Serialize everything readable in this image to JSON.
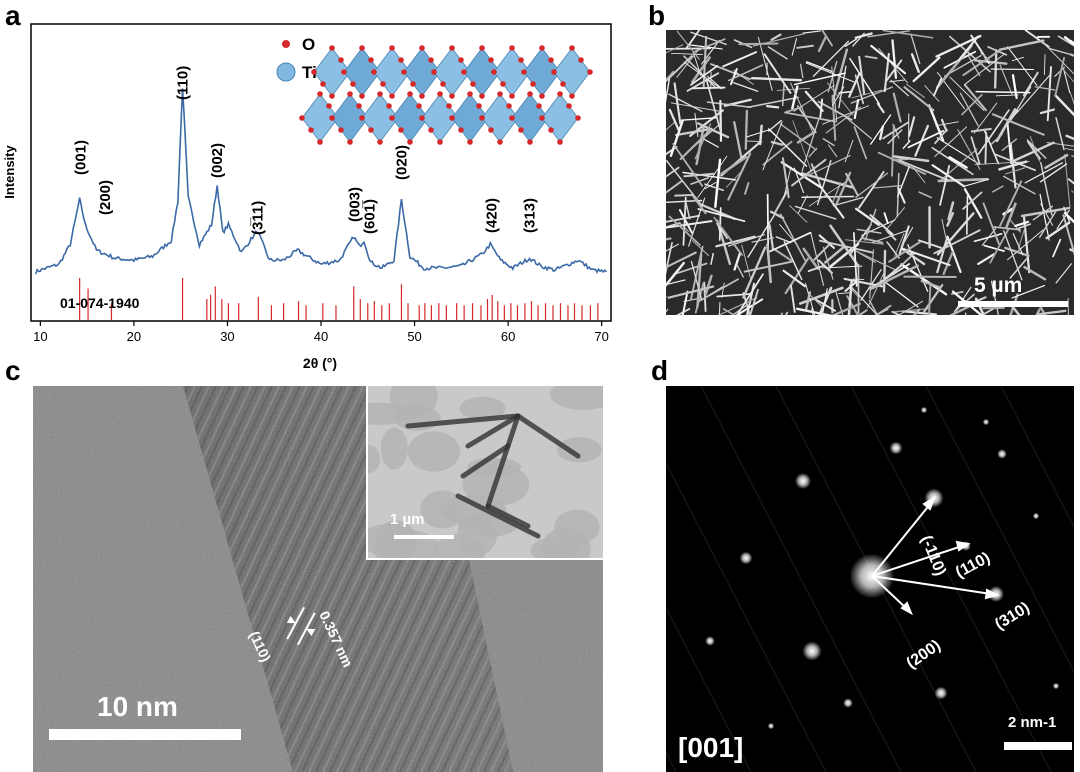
{
  "panels": {
    "a": "a",
    "b": "b",
    "c": "c",
    "d": "d"
  },
  "panel_a": {
    "ylabel": "Intensity",
    "xlabel": "2θ (°)",
    "reference_label": "01-074-1940",
    "legend": [
      {
        "label": "O",
        "color": "#d62828"
      },
      {
        "label": "Ti",
        "color": "#7fb8e0"
      }
    ],
    "colors": {
      "pattern": "#3b6aa6",
      "reference": "#d62828"
    }
  },
  "chart_data": {
    "type": "line",
    "xlabel": "2θ (°)",
    "ylabel": "Intensity",
    "xlim": [
      9,
      71
    ],
    "xticks": [
      10,
      20,
      30,
      40,
      50,
      60,
      70
    ],
    "x": [
      9.5,
      10,
      12,
      13.2,
      14.2,
      14.8,
      16,
      18,
      20,
      22,
      24,
      24.7,
      25.2,
      25.8,
      27,
      28.3,
      28.9,
      29.5,
      30.1,
      31.5,
      33.2,
      34.5,
      36,
      37.5,
      38.5,
      40,
      42,
      43.5,
      44.1,
      44.6,
      45.3,
      46.5,
      47.8,
      48.6,
      49.5,
      51,
      53,
      55,
      57.2,
      58.1,
      59.2,
      60.5,
      62.3,
      63.5,
      65,
      67.5,
      69,
      70.5
    ],
    "y": [
      0.06,
      0.07,
      0.1,
      0.2,
      0.43,
      0.3,
      0.17,
      0.13,
      0.12,
      0.14,
      0.22,
      0.42,
      1.0,
      0.44,
      0.2,
      0.3,
      0.5,
      0.26,
      0.3,
      0.16,
      0.27,
      0.12,
      0.12,
      0.17,
      0.14,
      0.1,
      0.12,
      0.24,
      0.19,
      0.22,
      0.11,
      0.08,
      0.12,
      0.43,
      0.14,
      0.08,
      0.08,
      0.09,
      0.15,
      0.2,
      0.12,
      0.08,
      0.13,
      0.09,
      0.07,
      0.12,
      0.07,
      0.06
    ],
    "peak_labels": [
      {
        "label": "(001)",
        "x": 14.3
      },
      {
        "label": "(200)",
        "x": 16.9
      },
      {
        "label": "(110)",
        "x": 25.2
      },
      {
        "label": "(002)",
        "x": 28.9
      },
      {
        "label": "(3̅11)",
        "x": 33.2
      },
      {
        "label": "(003)",
        "x": 43.6
      },
      {
        "label": "(601̅)",
        "x": 45.2
      },
      {
        "label": "(020)",
        "x": 48.6
      },
      {
        "label": "(420)",
        "x": 58.2
      },
      {
        "label": "(313)",
        "x": 62.3
      }
    ],
    "reference_lines": [
      {
        "x": 14.2,
        "h": 1.0
      },
      {
        "x": 15.1,
        "h": 0.75
      },
      {
        "x": 17.6,
        "h": 0.4
      },
      {
        "x": 25.2,
        "h": 1.0
      },
      {
        "x": 27.8,
        "h": 0.5
      },
      {
        "x": 28.2,
        "h": 0.6
      },
      {
        "x": 28.7,
        "h": 0.8
      },
      {
        "x": 29.4,
        "h": 0.5
      },
      {
        "x": 30.1,
        "h": 0.4
      },
      {
        "x": 31.2,
        "h": 0.4
      },
      {
        "x": 33.3,
        "h": 0.55
      },
      {
        "x": 34.7,
        "h": 0.35
      },
      {
        "x": 36.0,
        "h": 0.4
      },
      {
        "x": 37.6,
        "h": 0.45
      },
      {
        "x": 38.4,
        "h": 0.35
      },
      {
        "x": 40.2,
        "h": 0.4
      },
      {
        "x": 41.6,
        "h": 0.35
      },
      {
        "x": 43.5,
        "h": 0.8
      },
      {
        "x": 44.2,
        "h": 0.5
      },
      {
        "x": 45.0,
        "h": 0.4
      },
      {
        "x": 45.7,
        "h": 0.45
      },
      {
        "x": 46.5,
        "h": 0.35
      },
      {
        "x": 47.3,
        "h": 0.4
      },
      {
        "x": 48.6,
        "h": 0.85
      },
      {
        "x": 49.3,
        "h": 0.4
      },
      {
        "x": 50.5,
        "h": 0.35
      },
      {
        "x": 51.1,
        "h": 0.4
      },
      {
        "x": 51.8,
        "h": 0.35
      },
      {
        "x": 52.6,
        "h": 0.4
      },
      {
        "x": 53.4,
        "h": 0.35
      },
      {
        "x": 54.5,
        "h": 0.4
      },
      {
        "x": 55.3,
        "h": 0.35
      },
      {
        "x": 56.2,
        "h": 0.4
      },
      {
        "x": 57.1,
        "h": 0.35
      },
      {
        "x": 57.8,
        "h": 0.5
      },
      {
        "x": 58.3,
        "h": 0.6
      },
      {
        "x": 58.9,
        "h": 0.45
      },
      {
        "x": 59.6,
        "h": 0.35
      },
      {
        "x": 60.3,
        "h": 0.4
      },
      {
        "x": 61.0,
        "h": 0.35
      },
      {
        "x": 61.8,
        "h": 0.4
      },
      {
        "x": 62.5,
        "h": 0.45
      },
      {
        "x": 63.2,
        "h": 0.35
      },
      {
        "x": 64.0,
        "h": 0.4
      },
      {
        "x": 64.8,
        "h": 0.35
      },
      {
        "x": 65.6,
        "h": 0.4
      },
      {
        "x": 66.4,
        "h": 0.35
      },
      {
        "x": 67.1,
        "h": 0.4
      },
      {
        "x": 67.9,
        "h": 0.35
      },
      {
        "x": 68.8,
        "h": 0.35
      },
      {
        "x": 69.6,
        "h": 0.4
      }
    ]
  },
  "panel_b": {
    "scale_bar": "5 µm"
  },
  "panel_c": {
    "scale_bar": "10 nm",
    "inset_scale_bar": "1 µm",
    "d_spacing": "0.357 nm",
    "plane": "(110)"
  },
  "panel_d": {
    "zone_axis": "[001]",
    "scale_bar": "2 nm-1",
    "spot_labels": [
      "(-110)",
      "(110)",
      "(310)",
      "(200)"
    ]
  }
}
